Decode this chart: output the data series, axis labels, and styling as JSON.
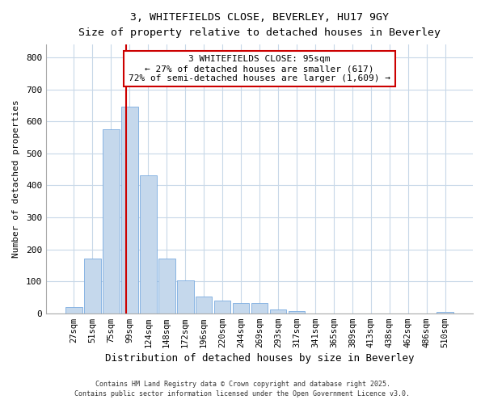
{
  "title1": "3, WHITEFIELDS CLOSE, BEVERLEY, HU17 9GY",
  "title2": "Size of property relative to detached houses in Beverley",
  "xlabel": "Distribution of detached houses by size in Beverley",
  "ylabel": "Number of detached properties",
  "bar_labels": [
    "27sqm",
    "51sqm",
    "75sqm",
    "99sqm",
    "124sqm",
    "148sqm",
    "172sqm",
    "196sqm",
    "220sqm",
    "244sqm",
    "269sqm",
    "293sqm",
    "317sqm",
    "341sqm",
    "365sqm",
    "389sqm",
    "413sqm",
    "438sqm",
    "462sqm",
    "486sqm",
    "510sqm"
  ],
  "bar_values": [
    20,
    170,
    575,
    645,
    430,
    170,
    103,
    52,
    40,
    32,
    32,
    13,
    8,
    0,
    0,
    0,
    0,
    0,
    0,
    0,
    5
  ],
  "bar_color": "#c5d8ec",
  "bar_edge_color": "#7aabe0",
  "background_color": "#ffffff",
  "grid_color": "#c8d8e8",
  "annotation_box_text": "3 WHITEFIELDS CLOSE: 95sqm\n← 27% of detached houses are smaller (617)\n72% of semi-detached houses are larger (1,609) →",
  "annotation_box_color": "#cc0000",
  "vline_color": "#cc0000",
  "vline_x": 2.82,
  "ylim": [
    0,
    840
  ],
  "yticks": [
    0,
    100,
    200,
    300,
    400,
    500,
    600,
    700,
    800
  ],
  "footer1": "Contains HM Land Registry data © Crown copyright and database right 2025.",
  "footer2": "Contains public sector information licensed under the Open Government Licence v3.0."
}
